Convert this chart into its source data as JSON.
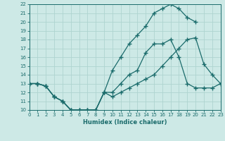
{
  "xlabel": "Humidex (Indice chaleur)",
  "bg_color": "#cde9e6",
  "grid_color": "#aed4d0",
  "line_color": "#1a6b6b",
  "xlim": [
    0,
    23
  ],
  "ylim": [
    10,
    22
  ],
  "xticks": [
    0,
    1,
    2,
    3,
    4,
    5,
    6,
    7,
    8,
    9,
    10,
    11,
    12,
    13,
    14,
    15,
    16,
    17,
    18,
    19,
    20,
    21,
    22,
    23
  ],
  "yticks": [
    10,
    11,
    12,
    13,
    14,
    15,
    16,
    17,
    18,
    19,
    20,
    21,
    22
  ],
  "curve1_x": [
    0,
    1,
    2,
    3,
    4,
    5,
    6,
    7,
    8,
    9,
    10,
    11,
    12,
    13,
    14,
    15,
    16,
    17,
    18,
    19,
    20,
    21,
    22,
    23
  ],
  "curve1_y": [
    13,
    13,
    12.7,
    11.5,
    11,
    10,
    10,
    10,
    10,
    12,
    11.5,
    12,
    12.5,
    13,
    13.5,
    14,
    15,
    16,
    17,
    18,
    18.2,
    15.2,
    14,
    13
  ],
  "curve2_x": [
    0,
    1,
    2,
    3,
    4,
    5,
    6,
    7,
    8,
    9,
    10,
    11,
    12,
    13,
    14,
    15,
    16,
    17,
    18,
    19,
    20,
    21,
    22,
    23
  ],
  "curve2_y": [
    13,
    13,
    12.7,
    11.5,
    11,
    10,
    10,
    10,
    10,
    12,
    12,
    13,
    14,
    14.5,
    16.5,
    17.5,
    17.5,
    18,
    16,
    13,
    12.5,
    12.5,
    12.5,
    13
  ],
  "curve3_x": [
    0,
    1,
    2,
    3,
    4,
    5,
    6,
    7,
    8,
    9,
    10,
    11,
    12,
    13,
    14,
    15,
    16,
    17,
    18,
    19,
    20
  ],
  "curve3_y": [
    13,
    13,
    12.7,
    11.5,
    11,
    10,
    10,
    10,
    10,
    12,
    14.5,
    16,
    17.5,
    18.5,
    19.5,
    21,
    21.5,
    22,
    21.5,
    20.5,
    20
  ]
}
